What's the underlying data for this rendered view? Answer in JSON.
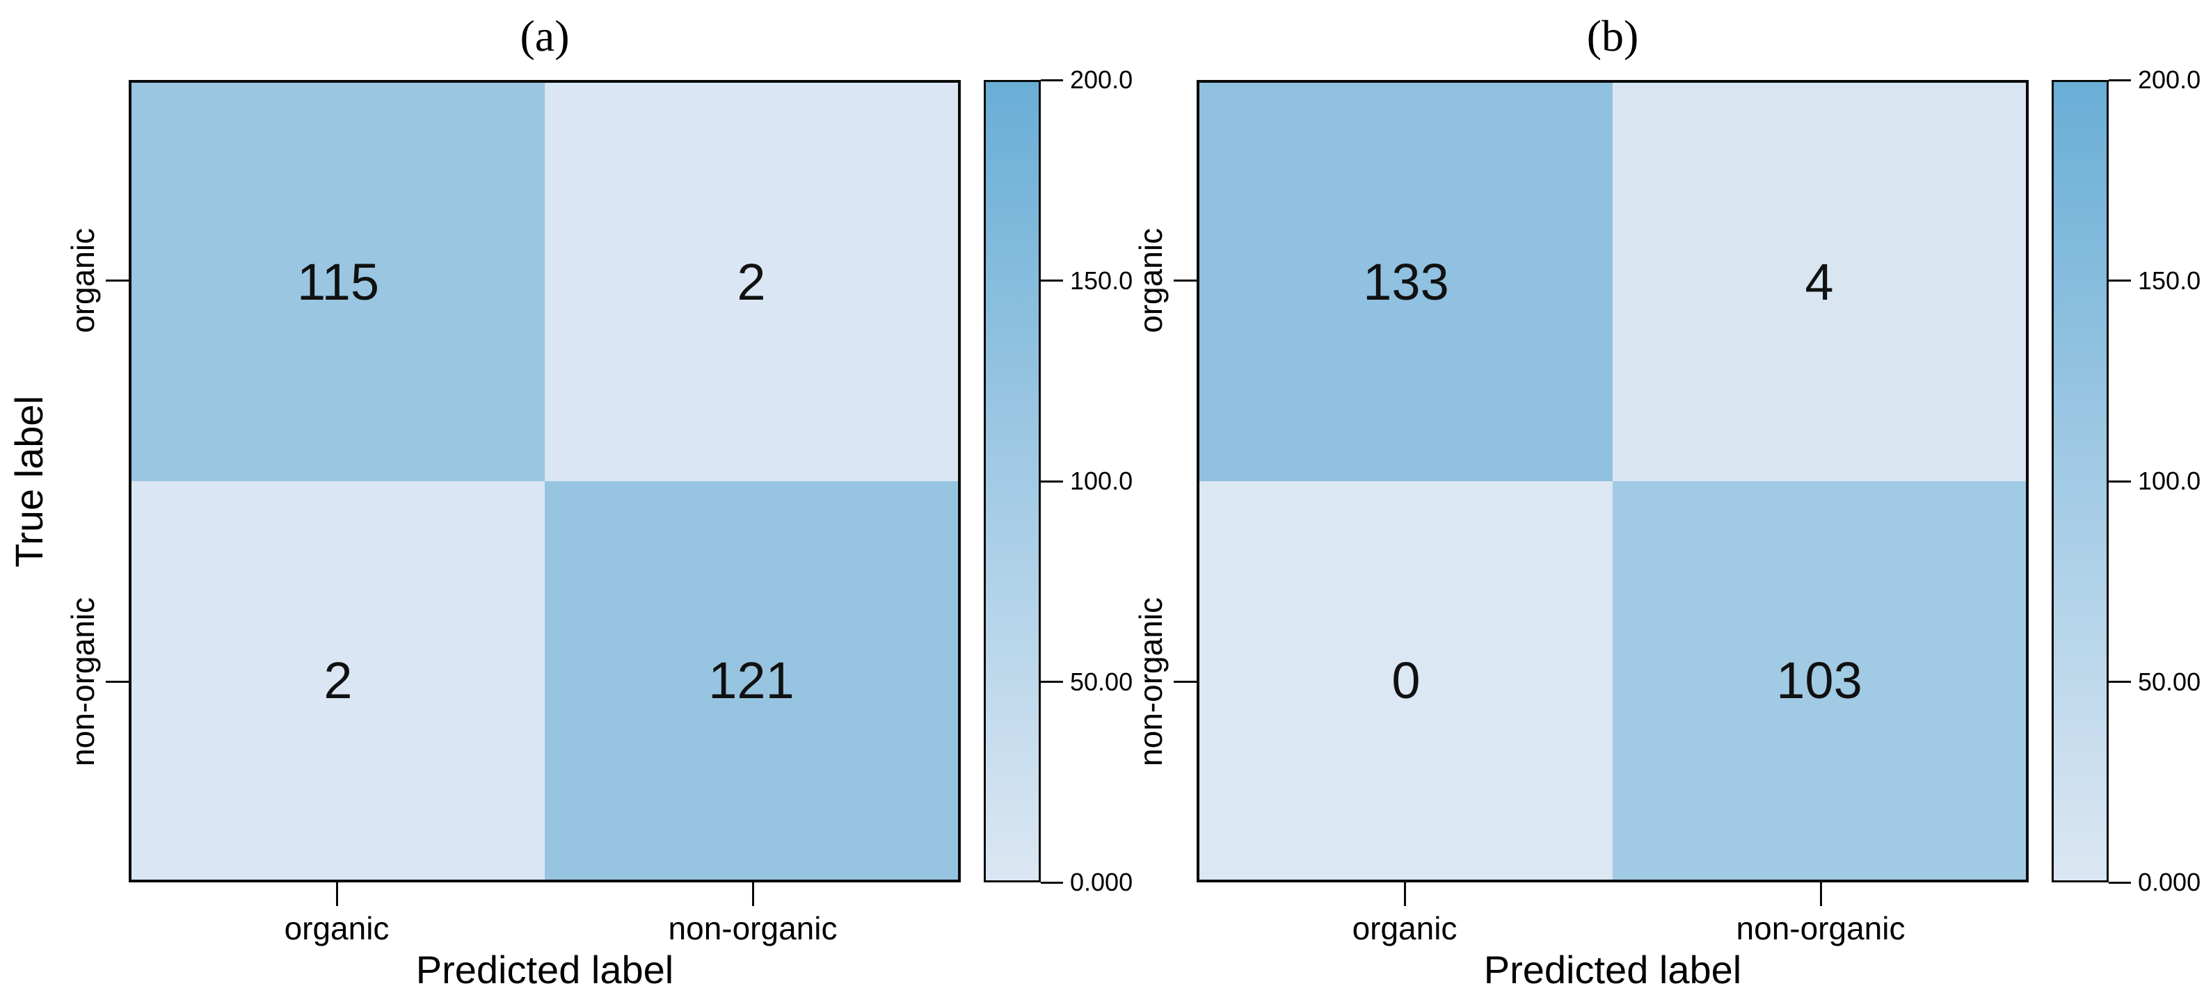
{
  "figure": {
    "background": "#ffffff"
  },
  "chart_data": [
    {
      "type": "heatmap",
      "title": "(a)",
      "xlabel": "Predicted label",
      "ylabel": "True label",
      "x_categories": [
        "organic",
        "non-organic"
      ],
      "y_categories": [
        "organic",
        "non-organic"
      ],
      "matrix": [
        [
          115,
          2
        ],
        [
          2,
          121
        ]
      ],
      "grid": false,
      "colorbar": {
        "position": "right",
        "vmin": 0,
        "vmax": 200,
        "ticks": [
          "200.0",
          "150.0",
          "100.0",
          "50.00",
          "0.000"
        ],
        "min_color": "#dbe7f3",
        "max_color": "#6aaed6"
      }
    },
    {
      "type": "heatmap",
      "title": "(b)",
      "xlabel": "Predicted label",
      "ylabel": "",
      "x_categories": [
        "organic",
        "non-organic"
      ],
      "y_categories": [
        "organic",
        "non-organic"
      ],
      "matrix": [
        [
          133,
          4
        ],
        [
          0,
          103
        ]
      ],
      "grid": false,
      "colorbar": {
        "position": "right",
        "vmin": 0,
        "vmax": 200,
        "ticks": [
          "200.0",
          "150.0",
          "100.0",
          "50.00",
          "0.000"
        ],
        "min_color": "#dbe7f3",
        "max_color": "#6aaed6"
      }
    }
  ]
}
